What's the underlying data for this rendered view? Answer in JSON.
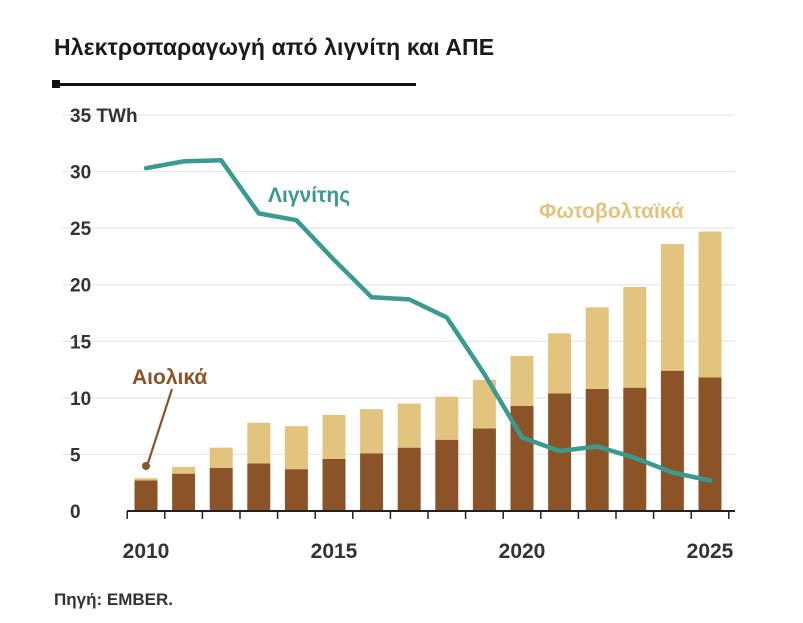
{
  "title": "Ηλεκτροπαραγωγή από λιγνίτη και ΑΠΕ",
  "source": "Πηγή: EMBER.",
  "colors": {
    "wind": "#8b5328",
    "solar": "#e3c47e",
    "lignite": "#3a9a90",
    "grid": "#e6e6e6",
    "axis": "#222222"
  },
  "chart_data": {
    "type": "bar",
    "stacked": true,
    "x": [
      2010,
      2011,
      2012,
      2013,
      2014,
      2015,
      2016,
      2017,
      2018,
      2019,
      2020,
      2021,
      2022,
      2023,
      2024,
      2025
    ],
    "series": [
      {
        "name": "Αιολικά",
        "type": "bar",
        "values": [
          2.7,
          3.3,
          3.8,
          4.2,
          3.7,
          4.6,
          5.1,
          5.6,
          6.3,
          7.3,
          9.3,
          10.4,
          10.8,
          10.9,
          12.4,
          11.8
        ]
      },
      {
        "name": "Φωτοβολταϊκά",
        "type": "bar",
        "values": [
          0.2,
          0.6,
          1.8,
          3.6,
          3.8,
          3.9,
          3.9,
          3.9,
          3.8,
          4.3,
          4.4,
          5.3,
          7.2,
          8.9,
          11.2,
          12.9
        ]
      },
      {
        "name": "Λιγνίτης",
        "type": "line",
        "values": [
          30.3,
          30.9,
          31.0,
          26.3,
          25.7,
          22.2,
          18.9,
          18.7,
          17.1,
          12.1,
          6.5,
          5.3,
          5.7,
          4.7,
          3.4,
          2.7
        ]
      }
    ],
    "ylim": [
      0,
      35
    ],
    "yticks": [
      0,
      5,
      10,
      15,
      20,
      25,
      30,
      35
    ],
    "ytick_labels": [
      "0",
      "5",
      "10",
      "15",
      "20",
      "25",
      "30",
      "35 TWh"
    ],
    "xtick_labels": [
      "2010",
      "2015",
      "2020",
      "2025"
    ],
    "xtick_years": [
      2010,
      2015,
      2020,
      2025
    ],
    "grid": true,
    "annotations": {
      "lignite": "Λιγνίτης",
      "solar": "Φωτοβολταϊκά",
      "wind": "Αιολικά"
    }
  }
}
